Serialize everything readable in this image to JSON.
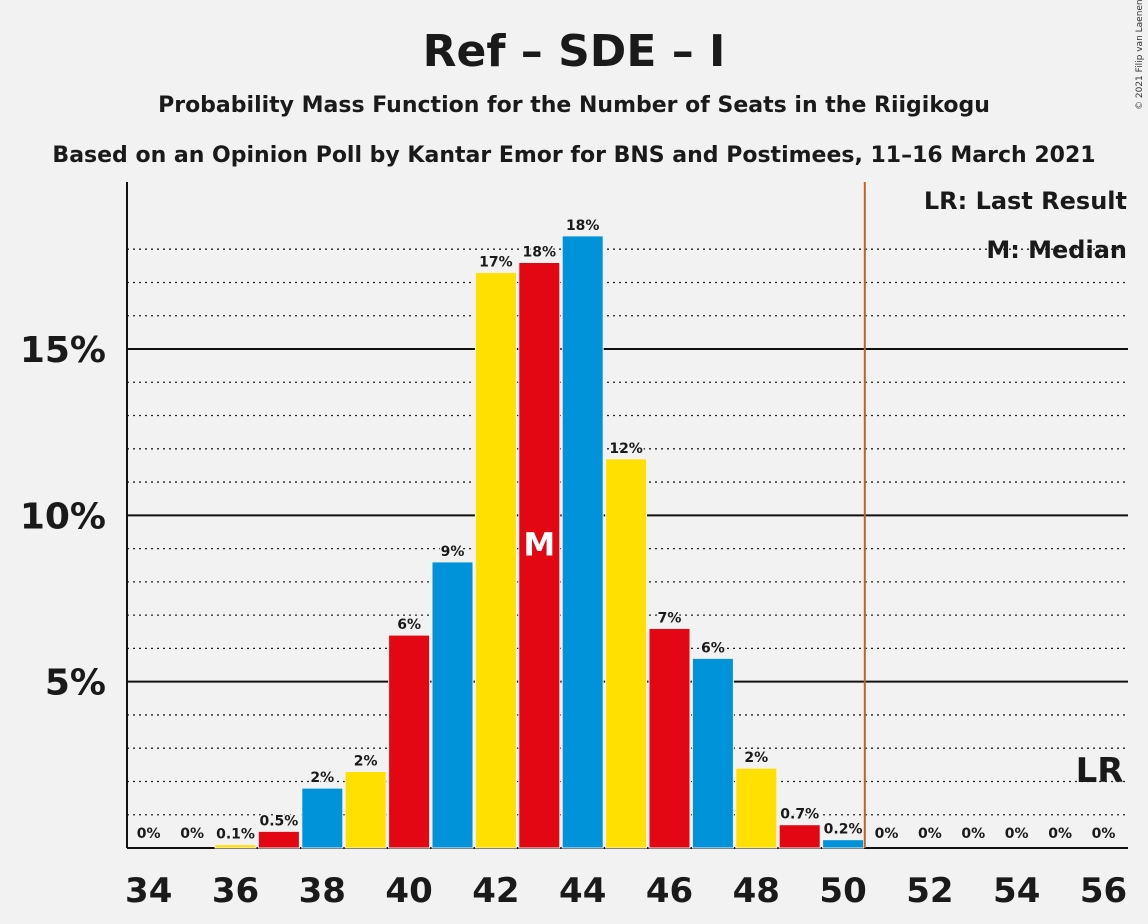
{
  "title": "Ref – SDE – I",
  "subtitle": "Probability Mass Function for the Number of Seats in the Riigikogu",
  "subtitle2": "Based on an Opinion Poll by Kantar Emor for BNS and Postimees, 11–16 March 2021",
  "copyright": "© 2021 Filip van Laenen",
  "legend": {
    "lr": "LR: Last Result",
    "m": "M: Median"
  },
  "markers": {
    "median_label": "M",
    "median_seat": 43,
    "last_result_label": "LR",
    "last_result_seat": 56,
    "majority_line_seat": 50.5
  },
  "colors": {
    "yellow": "#ffe000",
    "red": "#e30613",
    "blue": "#0093d9",
    "majority_line": "#c0631b"
  },
  "chart_data": {
    "type": "bar",
    "xlabel": "",
    "ylabel": "",
    "ylim": [
      0,
      20
    ],
    "x_ticks": [
      "34",
      "36",
      "38",
      "40",
      "42",
      "44",
      "46",
      "48",
      "50",
      "52",
      "54",
      "56"
    ],
    "y_ticks": [
      "5%",
      "10%",
      "15%"
    ],
    "categories": [
      34,
      35,
      36,
      37,
      38,
      39,
      40,
      41,
      42,
      43,
      44,
      45,
      46,
      47,
      48,
      49,
      50,
      51,
      52,
      53,
      54,
      55,
      56
    ],
    "values": [
      0,
      0,
      0.1,
      0.5,
      1.8,
      2.3,
      6.4,
      8.6,
      17.3,
      17.6,
      18.4,
      11.7,
      6.6,
      5.7,
      2.4,
      0.7,
      0.25,
      0,
      0,
      0,
      0,
      0,
      0
    ],
    "labels": [
      "0%",
      "0%",
      "0.1%",
      "0.5%",
      "2%",
      "2%",
      "6%",
      "9%",
      "17%",
      "18%",
      "18%",
      "12%",
      "7%",
      "6%",
      "2%",
      "0.7%",
      "0.2%",
      "0%",
      "0%",
      "0%",
      "0%",
      "0%",
      "0%"
    ],
    "bar_colors": [
      "yellow",
      "red",
      "yellow",
      "red",
      "blue",
      "yellow",
      "red",
      "blue",
      "yellow",
      "red",
      "blue",
      "yellow",
      "red",
      "blue",
      "yellow",
      "red",
      "blue",
      "yellow",
      "red",
      "blue",
      "yellow",
      "red",
      "blue"
    ],
    "grid": true
  }
}
